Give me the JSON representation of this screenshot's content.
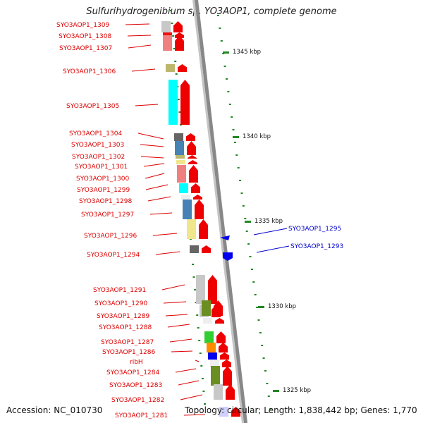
{
  "title": "Sulfurihydrogenibium sp. YO3AOP1, complete genome",
  "footer": {
    "accession": "Accession: NC_010730",
    "info": "Topology: circular; Length: 1,838,442 bp; Genes: 1,770"
  },
  "colors": {
    "gene_label": "#dd0000",
    "other_label": "#0000cc",
    "arrow": "#ee0000",
    "tick": "#228822",
    "backbone": "#888888"
  },
  "scale": [
    {
      "label": "1345 kbp"
    },
    {
      "label": "1340 kbp"
    },
    {
      "label": "1335 kbp"
    },
    {
      "label": "1330 kbp"
    },
    {
      "label": "1325 kbp"
    }
  ],
  "genes": [
    {
      "label": "SYO3AOP1_1309",
      "strand": "+",
      "cog": "#c8c8c8"
    },
    {
      "label": "SYO3AOP1_1308",
      "strand": "+",
      "cog": "#ee1111"
    },
    {
      "label": "SYO3AOP1_1307",
      "strand": "+",
      "cog": "#f08080"
    },
    {
      "label": "SYO3AOP1_1306",
      "strand": "+",
      "cog": "#bdb76b"
    },
    {
      "label": "SYO3AOP1_1305",
      "strand": "+",
      "cog": "#00ffff"
    },
    {
      "label": "SYO3AOP1_1304",
      "strand": "+",
      "cog": "#666666"
    },
    {
      "label": "SYO3AOP1_1303",
      "strand": "+",
      "cog": "#4682b4"
    },
    {
      "label": "SYO3AOP1_1302",
      "strand": "+",
      "cog": "#bdb76b"
    },
    {
      "label": "SYO3AOP1_1301",
      "strand": "+",
      "cog": "#f0e68c"
    },
    {
      "label": "SYO3AOP1_1300",
      "strand": "+",
      "cog": "#f08080"
    },
    {
      "label": "SYO3AOP1_1299",
      "strand": "+",
      "cog": "#00ffff"
    },
    {
      "label": "SYO3AOP1_1298",
      "strand": "+",
      "cog": "#eeeeee"
    },
    {
      "label": "SYO3AOP1_1297",
      "strand": "+",
      "cog": "#4682b4"
    },
    {
      "label": "SYO3AOP1_1296",
      "strand": "+",
      "cog": "#f0e68c"
    },
    {
      "label": "SYO3AOP1_1294",
      "strand": "+",
      "cog": "#666666"
    },
    {
      "label": "SYO3AOP1_1291",
      "strand": "+",
      "cog": "#c8c8c8"
    },
    {
      "label": "SYO3AOP1_1290",
      "strand": "+",
      "cog": "#c8c8c8"
    },
    {
      "label": "SYO3AOP1_1289",
      "strand": "+",
      "cog": "#6b8e23"
    },
    {
      "label": "SYO3AOP1_1288",
      "strand": "+",
      "cog": "#eeeeee"
    },
    {
      "label": "SYO3AOP1_1287",
      "strand": "+",
      "cog": "#32cd32"
    },
    {
      "label": "SYO3AOP1_1286",
      "strand": "+",
      "cog": "#ff8c00"
    },
    {
      "label": "ribH",
      "strand": "+",
      "cog": "#0000ee"
    },
    {
      "label": "SYO3AOP1_1284",
      "strand": "+",
      "cog": "#eeeeee"
    },
    {
      "label": "SYO3AOP1_1283",
      "strand": "+",
      "cog": "#6b8e23"
    },
    {
      "label": "SYO3AOP1_1282",
      "strand": "+",
      "cog": "#c8c8c8"
    },
    {
      "label": "SYO3AOP1_1281",
      "strand": "+",
      "cog": "#d0d0ff"
    }
  ],
  "other_features": [
    {
      "label": "SYO3AOP1_1295",
      "strand": "-"
    },
    {
      "label": "SYO3AOP1_1293",
      "strand": "-"
    }
  ]
}
